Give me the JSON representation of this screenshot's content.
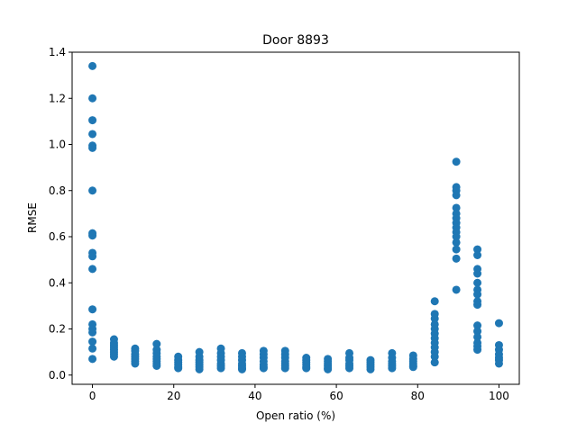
{
  "chart_data": {
    "type": "scatter",
    "title": "Door 8893",
    "xlabel": "Open ratio (%)",
    "ylabel": "RMSE",
    "xlim": [
      -5,
      105
    ],
    "ylim": [
      -0.04,
      1.4
    ],
    "xticks": [
      0,
      20,
      40,
      60,
      80,
      100
    ],
    "yticks": [
      0.0,
      0.2,
      0.4,
      0.6,
      0.8,
      1.0,
      1.2,
      1.4
    ],
    "xtick_labels": [
      "0",
      "20",
      "40",
      "60",
      "80",
      "100"
    ],
    "ytick_labels": [
      "0.0",
      "0.2",
      "0.4",
      "0.6",
      "0.8",
      "1.0",
      "1.2",
      "1.4"
    ],
    "grid": false,
    "marker_color": "#1f77b4",
    "points": [
      {
        "x": 0,
        "y": 1.34
      },
      {
        "x": 0,
        "y": 1.2
      },
      {
        "x": 0,
        "y": 1.105
      },
      {
        "x": 0,
        "y": 1.045
      },
      {
        "x": 0,
        "y": 0.995
      },
      {
        "x": 0,
        "y": 0.985
      },
      {
        "x": 0,
        "y": 0.8
      },
      {
        "x": 0,
        "y": 0.615
      },
      {
        "x": 0,
        "y": 0.605
      },
      {
        "x": 0,
        "y": 0.53
      },
      {
        "x": 0,
        "y": 0.515
      },
      {
        "x": 0,
        "y": 0.46
      },
      {
        "x": 0,
        "y": 0.285
      },
      {
        "x": 0,
        "y": 0.22
      },
      {
        "x": 0,
        "y": 0.2
      },
      {
        "x": 0,
        "y": 0.185
      },
      {
        "x": 0,
        "y": 0.145
      },
      {
        "x": 0,
        "y": 0.115
      },
      {
        "x": 0,
        "y": 0.07
      },
      {
        "x": 5.3,
        "y": 0.155
      },
      {
        "x": 5.3,
        "y": 0.14
      },
      {
        "x": 5.3,
        "y": 0.13
      },
      {
        "x": 5.3,
        "y": 0.12
      },
      {
        "x": 5.3,
        "y": 0.11
      },
      {
        "x": 5.3,
        "y": 0.1
      },
      {
        "x": 5.3,
        "y": 0.09
      },
      {
        "x": 5.3,
        "y": 0.08
      },
      {
        "x": 10.5,
        "y": 0.115
      },
      {
        "x": 10.5,
        "y": 0.105
      },
      {
        "x": 10.5,
        "y": 0.09
      },
      {
        "x": 10.5,
        "y": 0.08
      },
      {
        "x": 10.5,
        "y": 0.07
      },
      {
        "x": 10.5,
        "y": 0.06
      },
      {
        "x": 10.5,
        "y": 0.05
      },
      {
        "x": 15.8,
        "y": 0.135
      },
      {
        "x": 15.8,
        "y": 0.11
      },
      {
        "x": 15.8,
        "y": 0.095
      },
      {
        "x": 15.8,
        "y": 0.08
      },
      {
        "x": 15.8,
        "y": 0.07
      },
      {
        "x": 15.8,
        "y": 0.06
      },
      {
        "x": 15.8,
        "y": 0.05
      },
      {
        "x": 15.8,
        "y": 0.04
      },
      {
        "x": 21.1,
        "y": 0.08
      },
      {
        "x": 21.1,
        "y": 0.065
      },
      {
        "x": 21.1,
        "y": 0.055
      },
      {
        "x": 21.1,
        "y": 0.045
      },
      {
        "x": 21.1,
        "y": 0.035
      },
      {
        "x": 21.1,
        "y": 0.03
      },
      {
        "x": 26.3,
        "y": 0.1
      },
      {
        "x": 26.3,
        "y": 0.08
      },
      {
        "x": 26.3,
        "y": 0.065
      },
      {
        "x": 26.3,
        "y": 0.055
      },
      {
        "x": 26.3,
        "y": 0.045
      },
      {
        "x": 26.3,
        "y": 0.035
      },
      {
        "x": 26.3,
        "y": 0.025
      },
      {
        "x": 31.6,
        "y": 0.115
      },
      {
        "x": 31.6,
        "y": 0.095
      },
      {
        "x": 31.6,
        "y": 0.08
      },
      {
        "x": 31.6,
        "y": 0.065
      },
      {
        "x": 31.6,
        "y": 0.05
      },
      {
        "x": 31.6,
        "y": 0.04
      },
      {
        "x": 31.6,
        "y": 0.03
      },
      {
        "x": 36.8,
        "y": 0.095
      },
      {
        "x": 36.8,
        "y": 0.08
      },
      {
        "x": 36.8,
        "y": 0.065
      },
      {
        "x": 36.8,
        "y": 0.05
      },
      {
        "x": 36.8,
        "y": 0.04
      },
      {
        "x": 36.8,
        "y": 0.03
      },
      {
        "x": 36.8,
        "y": 0.025
      },
      {
        "x": 42.1,
        "y": 0.105
      },
      {
        "x": 42.1,
        "y": 0.09
      },
      {
        "x": 42.1,
        "y": 0.075
      },
      {
        "x": 42.1,
        "y": 0.06
      },
      {
        "x": 42.1,
        "y": 0.045
      },
      {
        "x": 42.1,
        "y": 0.035
      },
      {
        "x": 42.1,
        "y": 0.03
      },
      {
        "x": 47.4,
        "y": 0.105
      },
      {
        "x": 47.4,
        "y": 0.09
      },
      {
        "x": 47.4,
        "y": 0.075
      },
      {
        "x": 47.4,
        "y": 0.06
      },
      {
        "x": 47.4,
        "y": 0.05
      },
      {
        "x": 47.4,
        "y": 0.04
      },
      {
        "x": 47.4,
        "y": 0.03
      },
      {
        "x": 52.6,
        "y": 0.075
      },
      {
        "x": 52.6,
        "y": 0.065
      },
      {
        "x": 52.6,
        "y": 0.055
      },
      {
        "x": 52.6,
        "y": 0.045
      },
      {
        "x": 52.6,
        "y": 0.035
      },
      {
        "x": 52.6,
        "y": 0.03
      },
      {
        "x": 57.9,
        "y": 0.07
      },
      {
        "x": 57.9,
        "y": 0.06
      },
      {
        "x": 57.9,
        "y": 0.05
      },
      {
        "x": 57.9,
        "y": 0.04
      },
      {
        "x": 57.9,
        "y": 0.03
      },
      {
        "x": 57.9,
        "y": 0.025
      },
      {
        "x": 63.2,
        "y": 0.095
      },
      {
        "x": 63.2,
        "y": 0.075
      },
      {
        "x": 63.2,
        "y": 0.065
      },
      {
        "x": 63.2,
        "y": 0.05
      },
      {
        "x": 63.2,
        "y": 0.04
      },
      {
        "x": 63.2,
        "y": 0.03
      },
      {
        "x": 68.4,
        "y": 0.065
      },
      {
        "x": 68.4,
        "y": 0.055
      },
      {
        "x": 68.4,
        "y": 0.045
      },
      {
        "x": 68.4,
        "y": 0.035
      },
      {
        "x": 68.4,
        "y": 0.025
      },
      {
        "x": 73.7,
        "y": 0.095
      },
      {
        "x": 73.7,
        "y": 0.075
      },
      {
        "x": 73.7,
        "y": 0.06
      },
      {
        "x": 73.7,
        "y": 0.05
      },
      {
        "x": 73.7,
        "y": 0.04
      },
      {
        "x": 73.7,
        "y": 0.03
      },
      {
        "x": 78.9,
        "y": 0.085
      },
      {
        "x": 78.9,
        "y": 0.07
      },
      {
        "x": 78.9,
        "y": 0.06
      },
      {
        "x": 78.9,
        "y": 0.05
      },
      {
        "x": 78.9,
        "y": 0.04
      },
      {
        "x": 78.9,
        "y": 0.035
      },
      {
        "x": 84.2,
        "y": 0.32
      },
      {
        "x": 84.2,
        "y": 0.265
      },
      {
        "x": 84.2,
        "y": 0.245
      },
      {
        "x": 84.2,
        "y": 0.22
      },
      {
        "x": 84.2,
        "y": 0.2
      },
      {
        "x": 84.2,
        "y": 0.18
      },
      {
        "x": 84.2,
        "y": 0.16
      },
      {
        "x": 84.2,
        "y": 0.14
      },
      {
        "x": 84.2,
        "y": 0.12
      },
      {
        "x": 84.2,
        "y": 0.1
      },
      {
        "x": 84.2,
        "y": 0.08
      },
      {
        "x": 84.2,
        "y": 0.055
      },
      {
        "x": 89.5,
        "y": 0.925
      },
      {
        "x": 89.5,
        "y": 0.815
      },
      {
        "x": 89.5,
        "y": 0.8
      },
      {
        "x": 89.5,
        "y": 0.78
      },
      {
        "x": 89.5,
        "y": 0.725
      },
      {
        "x": 89.5,
        "y": 0.7
      },
      {
        "x": 89.5,
        "y": 0.68
      },
      {
        "x": 89.5,
        "y": 0.66
      },
      {
        "x": 89.5,
        "y": 0.64
      },
      {
        "x": 89.5,
        "y": 0.62
      },
      {
        "x": 89.5,
        "y": 0.6
      },
      {
        "x": 89.5,
        "y": 0.575
      },
      {
        "x": 89.5,
        "y": 0.545
      },
      {
        "x": 89.5,
        "y": 0.505
      },
      {
        "x": 89.5,
        "y": 0.37
      },
      {
        "x": 94.7,
        "y": 0.545
      },
      {
        "x": 94.7,
        "y": 0.52
      },
      {
        "x": 94.7,
        "y": 0.46
      },
      {
        "x": 94.7,
        "y": 0.44
      },
      {
        "x": 94.7,
        "y": 0.4
      },
      {
        "x": 94.7,
        "y": 0.37
      },
      {
        "x": 94.7,
        "y": 0.35
      },
      {
        "x": 94.7,
        "y": 0.32
      },
      {
        "x": 94.7,
        "y": 0.305
      },
      {
        "x": 94.7,
        "y": 0.215
      },
      {
        "x": 94.7,
        "y": 0.19
      },
      {
        "x": 94.7,
        "y": 0.165
      },
      {
        "x": 94.7,
        "y": 0.14
      },
      {
        "x": 94.7,
        "y": 0.125
      },
      {
        "x": 94.7,
        "y": 0.11
      },
      {
        "x": 100,
        "y": 0.225
      },
      {
        "x": 100,
        "y": 0.13
      },
      {
        "x": 100,
        "y": 0.11
      },
      {
        "x": 100,
        "y": 0.09
      },
      {
        "x": 100,
        "y": 0.075
      },
      {
        "x": 100,
        "y": 0.065
      },
      {
        "x": 100,
        "y": 0.05
      }
    ]
  }
}
